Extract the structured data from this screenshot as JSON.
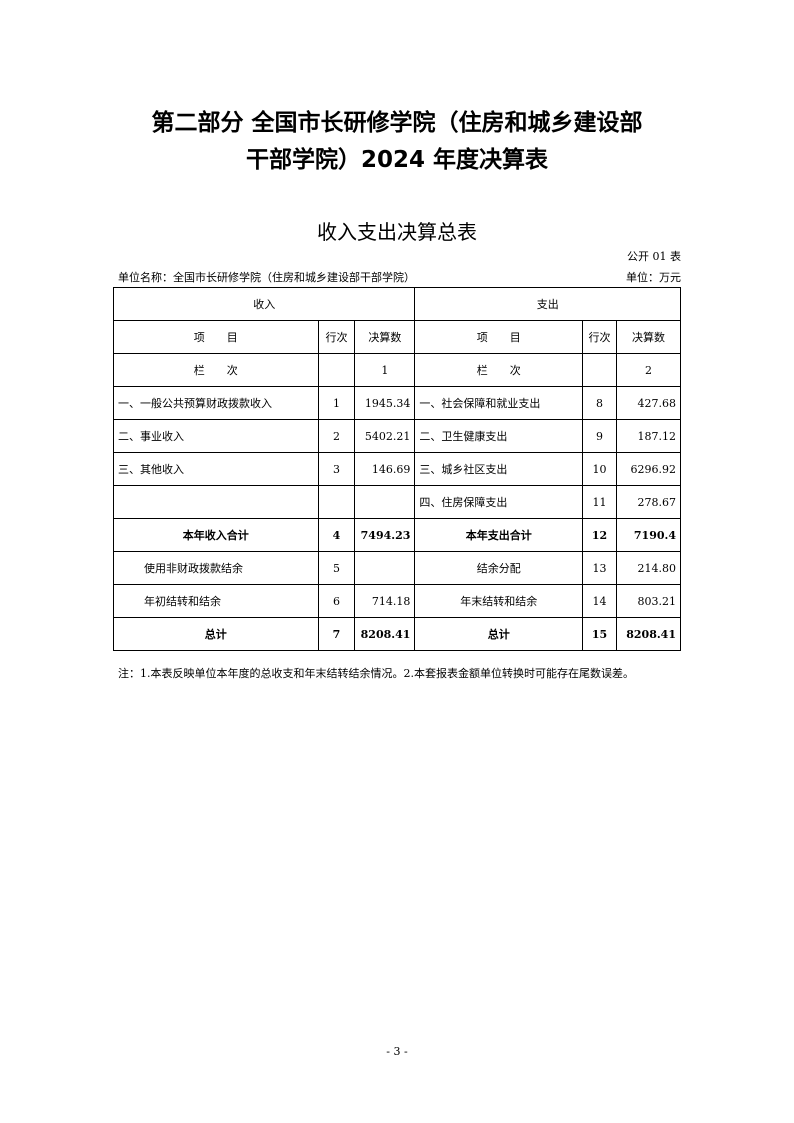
{
  "title_line1": "第二部分 全国市长研修学院（住房和城乡建设部",
  "title_line2": "干部学院）2024 年度决算表",
  "subtitle": "收入支出决算总表",
  "form_no": "公开 01 表",
  "unit_name": "单位名称：全国市长研修学院（住房和城乡建设部干部学院）",
  "unit": "单位：万元",
  "header": {
    "income": "收入",
    "expense": "支出",
    "item": "项　　目",
    "line": "行次",
    "amount": "决算数",
    "col": "栏　　次",
    "col1": "1",
    "col2": "2"
  },
  "rows": [
    {
      "in_item": "一、一般公共预算财政拨款收入",
      "in_line": "1",
      "in_amt": "1945.34",
      "ex_item": "一、社会保障和就业支出",
      "ex_line": "8",
      "ex_amt": "427.68"
    },
    {
      "in_item": "二、事业收入",
      "in_line": "2",
      "in_amt": "5402.21",
      "ex_item": "二、卫生健康支出",
      "ex_line": "9",
      "ex_amt": "187.12"
    },
    {
      "in_item": "三、其他收入",
      "in_line": "3",
      "in_amt": "146.69",
      "ex_item": "三、城乡社区支出",
      "ex_line": "10",
      "ex_amt": "6296.92"
    },
    {
      "in_item": "",
      "in_line": "",
      "in_amt": "",
      "ex_item": "四、住房保障支出",
      "ex_line": "11",
      "ex_amt": "278.67"
    },
    {
      "in_item": "本年收入合计",
      "in_line": "4",
      "in_amt": "7494.23",
      "ex_item": "本年支出合计",
      "ex_line": "12",
      "ex_amt": "7190.4"
    },
    {
      "in_item": "使用非财政拨款结余",
      "in_line": "5",
      "in_amt": "",
      "ex_item": "结余分配",
      "ex_line": "13",
      "ex_amt": "214.80"
    },
    {
      "in_item": "年初结转和结余",
      "in_line": "6",
      "in_amt": "714.18",
      "ex_item": "年末结转和结余",
      "ex_line": "14",
      "ex_amt": "803.21"
    },
    {
      "in_item": "总计",
      "in_line": "7",
      "in_amt": "8208.41",
      "ex_item": "总计",
      "ex_line": "15",
      "ex_amt": "8208.41"
    }
  ],
  "note": "注：1.本表反映单位本年度的总收支和年末结转结余情况。2.本套报表金额单位转换时可能存在尾数误差。",
  "page_number": "- 3 -"
}
